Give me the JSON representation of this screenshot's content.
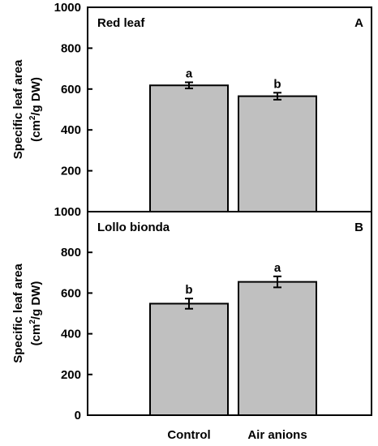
{
  "chart_data": {
    "type": "bar",
    "categories": [
      "Control",
      "Air anions"
    ],
    "ylim": [
      0,
      1000
    ],
    "yticks": [
      0,
      200,
      400,
      600,
      800,
      1000
    ],
    "ylabel_line1": "Specific leaf area",
    "ylabel_line2_prefix": "(cm",
    "ylabel_line2_sup": "2",
    "ylabel_line2_suffix": "/g DW)",
    "colors": {
      "bar_fill": "#c0c0c0",
      "bar_stroke": "#000000"
    },
    "panels": [
      {
        "title": "Red leaf",
        "letter": "A",
        "values": [
          618,
          565
        ],
        "errors": [
          15,
          17
        ],
        "significance": [
          "a",
          "b"
        ]
      },
      {
        "title": "Lollo bionda",
        "letter": "B",
        "values": [
          548,
          655
        ],
        "errors": [
          25,
          27
        ],
        "significance": [
          "b",
          "a"
        ]
      }
    ]
  }
}
